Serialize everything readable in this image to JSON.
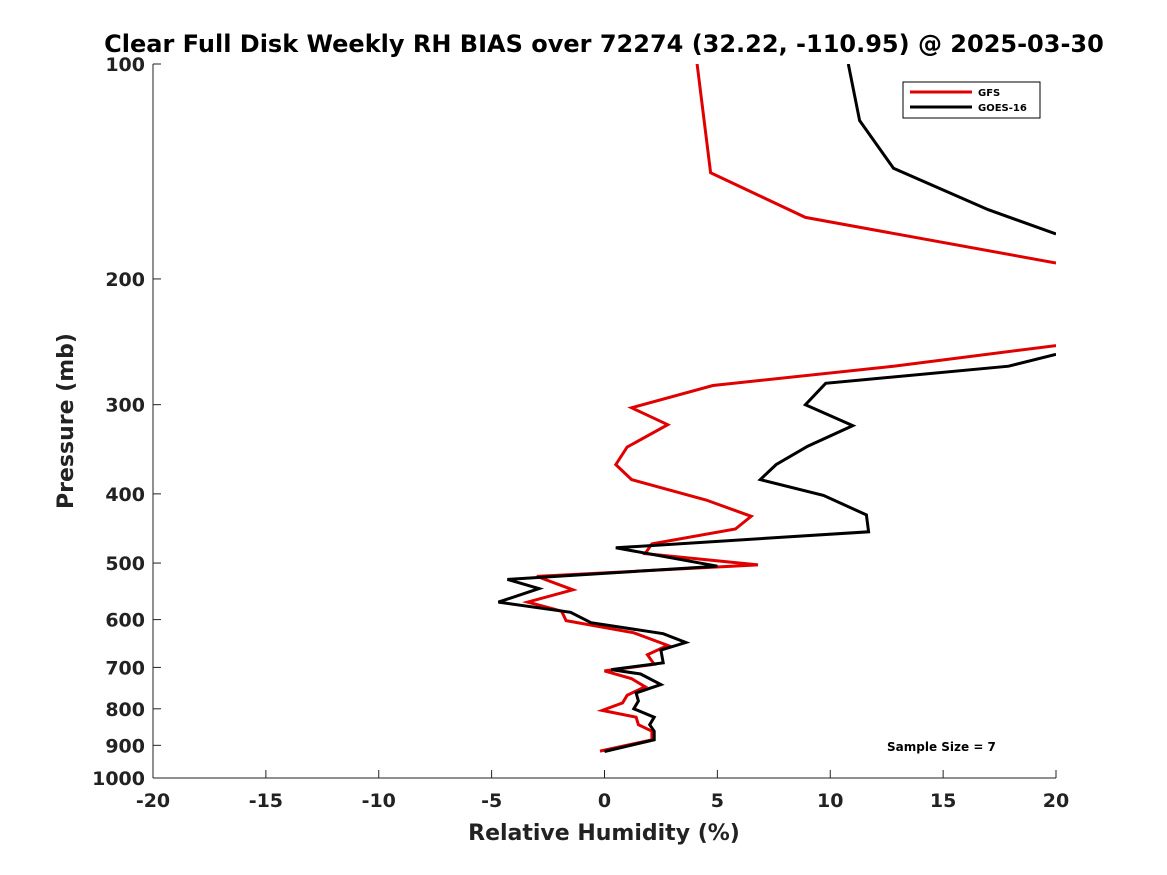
{
  "chart_data": {
    "type": "line",
    "title": "Clear Full Disk Weekly RH BIAS over 72274 (32.22, -110.95) @ 2025-03-30",
    "xlabel": "Relative Humidity (%)",
    "ylabel": "Pressure (mb)",
    "xlim": [
      -20,
      20
    ],
    "ylim": [
      1000,
      100
    ],
    "yscale": "log",
    "grid": false,
    "legend_placement": "top-right",
    "x_ticks": [
      -20,
      -15,
      -10,
      -5,
      0,
      5,
      10,
      15,
      20
    ],
    "x_tick_labels": [
      "-20",
      "-15",
      "-10",
      "-5",
      "0",
      "5",
      "10",
      "15",
      "20"
    ],
    "y_ticks": [
      100,
      200,
      300,
      400,
      500,
      600,
      700,
      800,
      900,
      1000
    ],
    "y_tick_labels": [
      "100",
      "200",
      "300",
      "400",
      "500",
      "600",
      "700",
      "800",
      "900",
      "1000"
    ],
    "annotation": "Sample Size = 7",
    "series": [
      {
        "name": "GFS",
        "color": "#e00000",
        "points": [
          [
            4.1,
            100
          ],
          [
            4.7,
            142
          ],
          [
            8.9,
            164
          ],
          [
            20,
            190
          ],
          [
            null,
            210
          ],
          [
            20,
            248
          ],
          [
            12.8,
            265
          ],
          [
            4.8,
            282
          ],
          [
            1.2,
            303
          ],
          [
            2.8,
            320
          ],
          [
            1.0,
            344
          ],
          [
            0.5,
            364
          ],
          [
            1.2,
            382
          ],
          [
            4.5,
            408
          ],
          [
            6.5,
            430
          ],
          [
            5.8,
            448
          ],
          [
            2.1,
            470
          ],
          [
            1.8,
            485
          ],
          [
            6.8,
            503
          ],
          [
            -3.0,
            522
          ],
          [
            -1.4,
            545
          ],
          [
            -3.4,
            567
          ],
          [
            -1.9,
            584
          ],
          [
            -1.7,
            602
          ],
          [
            1.3,
            626
          ],
          [
            2.8,
            652
          ],
          [
            1.9,
            672
          ],
          [
            2.2,
            693
          ],
          [
            0.0,
            708
          ],
          [
            1.2,
            726
          ],
          [
            1.8,
            745
          ],
          [
            1.0,
            766
          ],
          [
            0.8,
            785
          ],
          [
            -0.1,
            804
          ],
          [
            1.4,
            822
          ],
          [
            1.5,
            842
          ],
          [
            2.1,
            860
          ],
          [
            2.1,
            884
          ],
          [
            -0.2,
            917
          ]
        ]
      },
      {
        "name": "GOES-16",
        "color": "#000000",
        "points": [
          [
            10.8,
            100
          ],
          [
            11.3,
            120
          ],
          [
            12.8,
            140
          ],
          [
            17.0,
            160
          ],
          [
            20,
            173
          ],
          [
            null,
            200
          ],
          [
            20,
            255
          ],
          [
            17.9,
            265
          ],
          [
            9.8,
            280
          ],
          [
            8.9,
            300
          ],
          [
            11.0,
            321
          ],
          [
            9.0,
            343
          ],
          [
            7.6,
            364
          ],
          [
            6.9,
            382
          ],
          [
            9.7,
            402
          ],
          [
            11.6,
            428
          ],
          [
            11.7,
            452
          ],
          [
            0.5,
            476
          ],
          [
            5.0,
            505
          ],
          [
            -4.3,
            527
          ],
          [
            -2.9,
            543
          ],
          [
            -4.7,
            567
          ],
          [
            -1.5,
            586
          ],
          [
            -0.6,
            606
          ],
          [
            2.6,
            628
          ],
          [
            3.6,
            646
          ],
          [
            2.5,
            662
          ],
          [
            2.6,
            690
          ],
          [
            0.3,
            705
          ],
          [
            1.6,
            715
          ],
          [
            2.5,
            740
          ],
          [
            1.4,
            760
          ],
          [
            1.5,
            780
          ],
          [
            1.3,
            800
          ],
          [
            2.2,
            822
          ],
          [
            2.0,
            842
          ],
          [
            2.2,
            860
          ],
          [
            2.2,
            884
          ],
          [
            0.0,
            918
          ]
        ]
      }
    ]
  }
}
